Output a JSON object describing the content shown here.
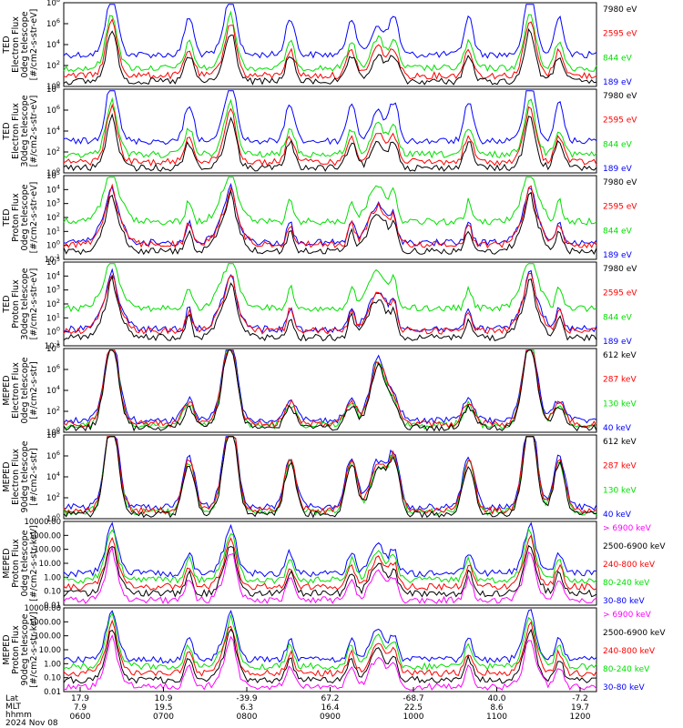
{
  "colors": {
    "black": "#000000",
    "red": "#ff0000",
    "green": "#00e000",
    "blue": "#0000ff",
    "magenta": "#ff00ff"
  },
  "chart_data": [
    {
      "type": "line",
      "ylabel": [
        "TED",
        "Electron Flux",
        "0deg telescope",
        "[#/cm2-s-str-eV]"
      ],
      "yscale": "log",
      "ytick_exponents": [
        0,
        2,
        4,
        6,
        8
      ],
      "legend": [
        "7980 eV",
        "2595 eV",
        "844 eV",
        "189 eV"
      ],
      "legend_colors": [
        "black",
        "red",
        "green",
        "blue"
      ]
    },
    {
      "type": "line",
      "ylabel": [
        "TED",
        "Electron Flux",
        "30deg telescope",
        "[#/cm2-s-str-eV]"
      ],
      "yscale": "log",
      "ytick_exponents": [
        0,
        2,
        4,
        6,
        8
      ],
      "legend": [
        "7980 eV",
        "2595 eV",
        "844 eV",
        "189 eV"
      ],
      "legend_colors": [
        "black",
        "red",
        "green",
        "blue"
      ]
    },
    {
      "type": "line",
      "ylabel": [
        "TED",
        "Proton Flux",
        "0deg telescope",
        "[#/cm2-s-str-eV]"
      ],
      "yscale": "log",
      "ytick_exponents": [
        -1,
        0,
        1,
        2,
        3,
        4,
        5
      ],
      "legend": [
        "7980 eV",
        "2595 eV",
        "844 eV",
        "189 eV"
      ],
      "legend_colors": [
        "black",
        "red",
        "green",
        "blue"
      ]
    },
    {
      "type": "line",
      "ylabel": [
        "TED",
        "Proton Flux",
        "30deg telescope",
        "[#/cm2-s-str-eV]"
      ],
      "yscale": "log",
      "ytick_exponents": [
        -1,
        0,
        1,
        2,
        3,
        4,
        5
      ],
      "legend": [
        "7980 eV",
        "2595 eV",
        "844 eV",
        "189 eV"
      ],
      "legend_colors": [
        "black",
        "red",
        "green",
        "blue"
      ]
    },
    {
      "type": "line",
      "ylabel": [
        "MEPED",
        "Electron Flux",
        "0deg telescope",
        "[#/cm2-s-str]"
      ],
      "yscale": "log",
      "ytick_exponents": [
        0,
        2,
        4,
        6,
        8
      ],
      "legend": [
        "612 keV",
        "287 keV",
        "130 keV",
        "40 keV"
      ],
      "legend_colors": [
        "black",
        "red",
        "green",
        "blue"
      ]
    },
    {
      "type": "line",
      "ylabel": [
        "MEPED",
        "Electron Flux",
        "90deg telescope",
        "[#/cm2-s-str]"
      ],
      "yscale": "log",
      "ytick_exponents": [
        0,
        2,
        4,
        6,
        8
      ],
      "legend": [
        "612 keV",
        "287 keV",
        "130 keV",
        "40 keV"
      ],
      "legend_colors": [
        "black",
        "red",
        "green",
        "blue"
      ]
    },
    {
      "type": "line",
      "ylabel": [
        "MEPED",
        "Proton Flux",
        "0deg telescope",
        "[#/cm2-s-str-keV]"
      ],
      "yscale": "log",
      "ytick_labels": [
        "0.01",
        "0.10",
        "1.00",
        "10.00",
        "100.00",
        "1000.00",
        "10000.00"
      ],
      "legend": [
        "> 6900 keV",
        "2500-6900 keV",
        "240-800 keV",
        "80-240 keV",
        "30-80 keV"
      ],
      "legend_colors": [
        "magenta",
        "black",
        "red",
        "green",
        "blue"
      ]
    },
    {
      "type": "line",
      "ylabel": [
        "MEPED",
        "Proton Flux",
        "90deg telescope",
        "[#/cm2-s-str-keV]"
      ],
      "yscale": "log",
      "ytick_labels": [
        "0.01",
        "0.10",
        "1.00",
        "10.00",
        "100.00",
        "1000.00",
        "10000.00"
      ],
      "legend": [
        "> 6900 keV",
        "2500-6900 keV",
        "240-800 keV",
        "80-240 keV",
        "30-80 keV"
      ],
      "legend_colors": [
        "magenta",
        "black",
        "red",
        "green",
        "blue"
      ]
    }
  ],
  "xaxis": {
    "row_labels": [
      "Lat",
      "MLT",
      "hhmm",
      "2024 Nov 08"
    ],
    "lat": [
      "17.9",
      "10.9",
      "-39.9",
      "67.2",
      "-68.7",
      "40.0",
      "-7.2"
    ],
    "mlt": [
      "7.9",
      "19.5",
      "6.3",
      "16.4",
      "22.5",
      "8.6",
      "19.7"
    ],
    "hhmm": [
      "0600",
      "0700",
      "0800",
      "0900",
      "1000",
      "1100",
      "1200"
    ]
  }
}
